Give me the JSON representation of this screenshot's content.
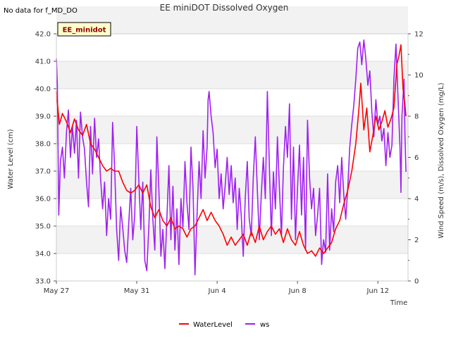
{
  "no_data_note": "No data for f_MD_DO",
  "badge_label": "EE_minidot",
  "chart_data": {
    "type": "line",
    "title": "EE miniDOT Dissolved Oxygen",
    "xlabel": "Time",
    "ylabel_left": "Water Level (cm)",
    "ylabel_right": "Wind Speed (m/s), Dissolved Oxygen (mg/L)",
    "xlim_days": [
      0,
      17.5
    ],
    "x_ticks": [
      {
        "label": "May 27",
        "day": 0
      },
      {
        "label": "May 31",
        "day": 4
      },
      {
        "label": "Jun 4",
        "day": 8
      },
      {
        "label": "Jun 8",
        "day": 12
      },
      {
        "label": "Jun 12",
        "day": 16
      }
    ],
    "ylim_left": [
      33.0,
      42.0
    ],
    "y_ticks_left": [
      "33.0",
      "34.0",
      "35.0",
      "36.0",
      "37.0",
      "38.0",
      "39.0",
      "40.0",
      "41.0",
      "42.0"
    ],
    "ylim_right": [
      0,
      12
    ],
    "y_ticks_right": [
      "0",
      "2",
      "4",
      "6",
      "8",
      "10",
      "12"
    ],
    "background_bands": true,
    "legend_placement": "bottom-center",
    "series": [
      {
        "name": "WaterLevel",
        "axis": "left",
        "color": "#ff0000",
        "points": [
          [
            0.0,
            39.9
          ],
          [
            0.15,
            38.7
          ],
          [
            0.3,
            39.1
          ],
          [
            0.5,
            38.8
          ],
          [
            0.7,
            38.4
          ],
          [
            0.9,
            38.9
          ],
          [
            1.1,
            38.5
          ],
          [
            1.3,
            38.3
          ],
          [
            1.5,
            38.7
          ],
          [
            1.7,
            38.0
          ],
          [
            1.9,
            37.8
          ],
          [
            2.1,
            37.5
          ],
          [
            2.3,
            37.2
          ],
          [
            2.5,
            37.0
          ],
          [
            2.7,
            37.1
          ],
          [
            2.9,
            37.0
          ],
          [
            3.1,
            37.0
          ],
          [
            3.3,
            36.6
          ],
          [
            3.5,
            36.3
          ],
          [
            3.7,
            36.2
          ],
          [
            3.9,
            36.3
          ],
          [
            4.1,
            36.5
          ],
          [
            4.3,
            36.2
          ],
          [
            4.5,
            36.5
          ],
          [
            4.7,
            35.7
          ],
          [
            4.9,
            35.3
          ],
          [
            5.1,
            35.6
          ],
          [
            5.3,
            35.2
          ],
          [
            5.5,
            35.0
          ],
          [
            5.7,
            35.3
          ],
          [
            5.9,
            34.9
          ],
          [
            6.1,
            35.0
          ],
          [
            6.3,
            34.9
          ],
          [
            6.5,
            34.6
          ],
          [
            6.7,
            34.9
          ],
          [
            6.9,
            35.0
          ],
          [
            7.1,
            35.3
          ],
          [
            7.3,
            35.6
          ],
          [
            7.5,
            35.2
          ],
          [
            7.7,
            35.5
          ],
          [
            7.9,
            35.2
          ],
          [
            8.1,
            35.0
          ],
          [
            8.3,
            34.7
          ],
          [
            8.5,
            34.3
          ],
          [
            8.7,
            34.6
          ],
          [
            8.9,
            34.3
          ],
          [
            9.1,
            34.5
          ],
          [
            9.3,
            34.7
          ],
          [
            9.5,
            34.3
          ],
          [
            9.7,
            34.8
          ],
          [
            9.9,
            34.4
          ],
          [
            10.1,
            35.0
          ],
          [
            10.3,
            34.5
          ],
          [
            10.5,
            34.8
          ],
          [
            10.7,
            35.0
          ],
          [
            10.9,
            34.7
          ],
          [
            11.1,
            34.9
          ],
          [
            11.3,
            34.4
          ],
          [
            11.5,
            34.9
          ],
          [
            11.7,
            34.5
          ],
          [
            11.9,
            34.3
          ],
          [
            12.1,
            34.8
          ],
          [
            12.3,
            34.3
          ],
          [
            12.5,
            34.0
          ],
          [
            12.7,
            34.1
          ],
          [
            12.9,
            33.9
          ],
          [
            13.1,
            34.2
          ],
          [
            13.3,
            34.0
          ],
          [
            13.5,
            34.2
          ],
          [
            13.7,
            34.4
          ],
          [
            13.9,
            34.9
          ],
          [
            14.1,
            35.2
          ],
          [
            14.3,
            35.8
          ],
          [
            14.5,
            36.3
          ],
          [
            14.7,
            37.0
          ],
          [
            14.9,
            38.0
          ],
          [
            15.05,
            39.2
          ],
          [
            15.15,
            40.2
          ],
          [
            15.3,
            38.5
          ],
          [
            15.45,
            39.3
          ],
          [
            15.6,
            37.7
          ],
          [
            15.75,
            38.3
          ],
          [
            15.9,
            39.0
          ],
          [
            16.05,
            38.5
          ],
          [
            16.2,
            38.8
          ],
          [
            16.35,
            39.2
          ],
          [
            16.5,
            38.6
          ],
          [
            16.65,
            38.9
          ],
          [
            16.8,
            39.3
          ],
          [
            16.95,
            40.9
          ],
          [
            17.05,
            41.2
          ],
          [
            17.15,
            41.6
          ],
          [
            17.25,
            40.0
          ],
          [
            17.35,
            39.4
          ],
          [
            17.4,
            39.0
          ]
        ]
      },
      {
        "name": "ws",
        "axis": "right",
        "color": "#a020f0",
        "points": [
          [
            0.0,
            10.8
          ],
          [
            0.05,
            9.5
          ],
          [
            0.12,
            3.2
          ],
          [
            0.2,
            5.8
          ],
          [
            0.3,
            6.5
          ],
          [
            0.4,
            5.0
          ],
          [
            0.5,
            7.2
          ],
          [
            0.6,
            8.3
          ],
          [
            0.7,
            6.0
          ],
          [
            0.8,
            7.5
          ],
          [
            0.9,
            6.2
          ],
          [
            1.0,
            7.8
          ],
          [
            1.1,
            5.0
          ],
          [
            1.2,
            8.2
          ],
          [
            1.3,
            7.0
          ],
          [
            1.4,
            6.4
          ],
          [
            1.5,
            4.8
          ],
          [
            1.6,
            3.6
          ],
          [
            1.7,
            7.5
          ],
          [
            1.8,
            5.2
          ],
          [
            1.9,
            7.9
          ],
          [
            2.0,
            6.0
          ],
          [
            2.1,
            6.9
          ],
          [
            2.2,
            5.0
          ],
          [
            2.3,
            3.5
          ],
          [
            2.4,
            4.8
          ],
          [
            2.5,
            2.2
          ],
          [
            2.6,
            4.0
          ],
          [
            2.7,
            3.0
          ],
          [
            2.8,
            7.7
          ],
          [
            2.9,
            5.5
          ],
          [
            3.0,
            2.5
          ],
          [
            3.1,
            1.0
          ],
          [
            3.2,
            3.6
          ],
          [
            3.3,
            2.6
          ],
          [
            3.4,
            1.5
          ],
          [
            3.5,
            0.9
          ],
          [
            3.6,
            2.8
          ],
          [
            3.7,
            4.5
          ],
          [
            3.8,
            2.0
          ],
          [
            3.9,
            3.2
          ],
          [
            4.0,
            7.5
          ],
          [
            4.1,
            5.0
          ],
          [
            4.2,
            2.5
          ],
          [
            4.3,
            4.8
          ],
          [
            4.4,
            1.0
          ],
          [
            4.5,
            0.5
          ],
          [
            4.6,
            2.6
          ],
          [
            4.7,
            5.4
          ],
          [
            4.8,
            3.0
          ],
          [
            4.9,
            1.5
          ],
          [
            5.0,
            7.0
          ],
          [
            5.1,
            4.5
          ],
          [
            5.2,
            1.2
          ],
          [
            5.3,
            2.5
          ],
          [
            5.4,
            0.6
          ],
          [
            5.5,
            3.0
          ],
          [
            5.6,
            5.6
          ],
          [
            5.7,
            2.0
          ],
          [
            5.8,
            4.6
          ],
          [
            5.9,
            1.5
          ],
          [
            6.0,
            3.5
          ],
          [
            6.1,
            0.8
          ],
          [
            6.2,
            4.0
          ],
          [
            6.3,
            2.6
          ],
          [
            6.4,
            5.8
          ],
          [
            6.5,
            3.8
          ],
          [
            6.6,
            2.5
          ],
          [
            6.7,
            6.5
          ],
          [
            6.8,
            4.5
          ],
          [
            6.9,
            0.3
          ],
          [
            7.0,
            3.2
          ],
          [
            7.1,
            5.8
          ],
          [
            7.2,
            4.0
          ],
          [
            7.3,
            7.3
          ],
          [
            7.4,
            5.0
          ],
          [
            7.5,
            6.5
          ],
          [
            7.55,
            8.8
          ],
          [
            7.6,
            9.2
          ],
          [
            7.7,
            8.0
          ],
          [
            7.8,
            7.2
          ],
          [
            7.9,
            5.5
          ],
          [
            8.0,
            6.4
          ],
          [
            8.1,
            4.0
          ],
          [
            8.2,
            5.2
          ],
          [
            8.3,
            3.5
          ],
          [
            8.4,
            4.6
          ],
          [
            8.5,
            6.0
          ],
          [
            8.6,
            4.2
          ],
          [
            8.7,
            5.6
          ],
          [
            8.8,
            3.8
          ],
          [
            8.9,
            5.0
          ],
          [
            9.0,
            2.5
          ],
          [
            9.1,
            4.5
          ],
          [
            9.2,
            3.2
          ],
          [
            9.3,
            1.2
          ],
          [
            9.4,
            4.0
          ],
          [
            9.5,
            5.8
          ],
          [
            9.6,
            3.0
          ],
          [
            9.7,
            2.2
          ],
          [
            9.8,
            5.0
          ],
          [
            9.9,
            7.0
          ],
          [
            10.0,
            4.5
          ],
          [
            10.1,
            2.0
          ],
          [
            10.2,
            4.2
          ],
          [
            10.3,
            6.0
          ],
          [
            10.4,
            4.0
          ],
          [
            10.5,
            9.2
          ],
          [
            10.6,
            5.5
          ],
          [
            10.7,
            2.2
          ],
          [
            10.8,
            5.3
          ],
          [
            10.9,
            3.5
          ],
          [
            11.0,
            7.0
          ],
          [
            11.1,
            4.5
          ],
          [
            11.2,
            2.2
          ],
          [
            11.3,
            5.5
          ],
          [
            11.4,
            7.5
          ],
          [
            11.5,
            6.0
          ],
          [
            11.6,
            8.6
          ],
          [
            11.7,
            3.0
          ],
          [
            11.8,
            6.5
          ],
          [
            11.9,
            2.0
          ],
          [
            12.0,
            4.5
          ],
          [
            12.1,
            6.6
          ],
          [
            12.2,
            3.2
          ],
          [
            12.3,
            6.0
          ],
          [
            12.4,
            1.5
          ],
          [
            12.5,
            7.8
          ],
          [
            12.6,
            5.0
          ],
          [
            12.7,
            3.5
          ],
          [
            12.8,
            4.5
          ],
          [
            12.9,
            2.2
          ],
          [
            13.0,
            3.2
          ],
          [
            13.1,
            4.5
          ],
          [
            13.2,
            0.8
          ],
          [
            13.3,
            2.0
          ],
          [
            13.4,
            1.4
          ],
          [
            13.5,
            5.2
          ],
          [
            13.6,
            1.5
          ],
          [
            13.7,
            3.5
          ],
          [
            13.8,
            2.4
          ],
          [
            13.9,
            4.8
          ],
          [
            14.0,
            5.6
          ],
          [
            14.1,
            3.8
          ],
          [
            14.2,
            6.0
          ],
          [
            14.3,
            4.2
          ],
          [
            14.4,
            3.0
          ],
          [
            14.5,
            4.5
          ],
          [
            14.6,
            6.5
          ],
          [
            14.7,
            7.6
          ],
          [
            14.8,
            8.5
          ],
          [
            14.9,
            9.8
          ],
          [
            15.0,
            11.3
          ],
          [
            15.1,
            11.6
          ],
          [
            15.2,
            10.5
          ],
          [
            15.3,
            11.7
          ],
          [
            15.4,
            10.8
          ],
          [
            15.5,
            9.5
          ],
          [
            15.6,
            10.2
          ],
          [
            15.7,
            8.2
          ],
          [
            15.8,
            7.0
          ],
          [
            15.9,
            8.8
          ],
          [
            16.0,
            7.6
          ],
          [
            16.1,
            8.0
          ],
          [
            16.2,
            6.8
          ],
          [
            16.3,
            7.4
          ],
          [
            16.4,
            5.6
          ],
          [
            16.5,
            7.2
          ],
          [
            16.6,
            6.0
          ],
          [
            16.7,
            6.6
          ],
          [
            16.8,
            9.8
          ],
          [
            16.9,
            11.5
          ],
          [
            17.0,
            9.0
          ],
          [
            17.1,
            6.5
          ],
          [
            17.15,
            4.3
          ],
          [
            17.2,
            8.0
          ],
          [
            17.3,
            9.8
          ],
          [
            17.35,
            7.0
          ],
          [
            17.4,
            5.3
          ]
        ]
      }
    ]
  }
}
